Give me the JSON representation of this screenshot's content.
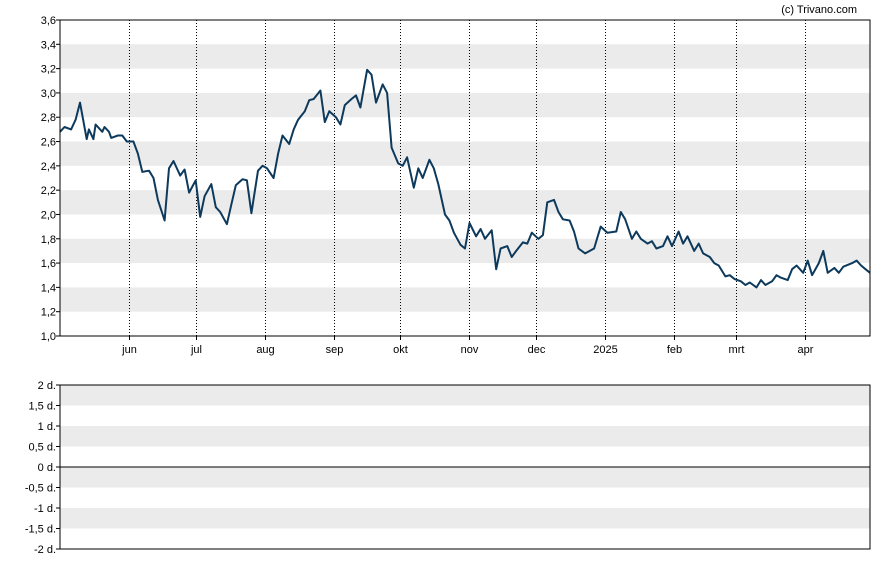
{
  "copyright": "(c) Trivano.com",
  "chart_data": [
    {
      "type": "line",
      "ylim": [
        1.0,
        3.6
      ],
      "y_ticks": [
        "1,0",
        "1,2",
        "1,4",
        "1,6",
        "1,8",
        "2,0",
        "2,2",
        "2,4",
        "2,6",
        "2,8",
        "3,0",
        "3,2",
        "3,4",
        "3,6"
      ],
      "x_ticks": [
        "jun",
        "jul",
        "aug",
        "sep",
        "okt",
        "nov",
        "dec",
        "2025",
        "feb",
        "mrt",
        "apr"
      ],
      "x_range": [
        "2024-05-01",
        "2025-04-30"
      ],
      "grid": "alternating horizontal bands, dotted vertical month lines",
      "colors": {
        "line": "#0d3a5c",
        "band": "#ebebeb"
      },
      "series": [
        {
          "x": [
            "2024-05-01",
            "2024-05-03",
            "2024-05-06",
            "2024-05-08",
            "2024-05-10",
            "2024-05-13",
            "2024-05-14",
            "2024-05-16",
            "2024-05-17",
            "2024-05-20",
            "2024-05-21",
            "2024-05-23",
            "2024-05-24",
            "2024-05-27",
            "2024-05-29",
            "2024-05-31",
            "2024-06-03",
            "2024-06-05",
            "2024-06-07",
            "2024-06-10",
            "2024-06-12",
            "2024-06-14",
            "2024-06-17",
            "2024-06-19",
            "2024-06-21",
            "2024-06-24",
            "2024-06-26",
            "2024-06-28",
            "2024-07-01",
            "2024-07-03",
            "2024-07-05",
            "2024-07-08",
            "2024-07-10",
            "2024-07-12",
            "2024-07-15",
            "2024-07-17",
            "2024-07-19",
            "2024-07-22",
            "2024-07-24",
            "2024-07-26",
            "2024-07-29",
            "2024-07-31",
            "2024-08-02",
            "2024-08-05",
            "2024-08-07",
            "2024-08-09",
            "2024-08-12",
            "2024-08-14",
            "2024-08-16",
            "2024-08-19",
            "2024-08-21",
            "2024-08-23",
            "2024-08-26",
            "2024-08-28",
            "2024-08-30",
            "2024-09-02",
            "2024-09-04",
            "2024-09-06",
            "2024-09-09",
            "2024-09-11",
            "2024-09-13",
            "2024-09-16",
            "2024-09-18",
            "2024-09-20",
            "2024-09-23",
            "2024-09-25",
            "2024-09-27",
            "2024-09-30",
            "2024-10-02",
            "2024-10-04",
            "2024-10-07",
            "2024-10-09",
            "2024-10-11",
            "2024-10-14",
            "2024-10-16",
            "2024-10-18",
            "2024-10-21",
            "2024-10-23",
            "2024-10-25",
            "2024-10-28",
            "2024-10-30",
            "2024-11-01",
            "2024-11-04",
            "2024-11-06",
            "2024-11-08",
            "2024-11-11",
            "2024-11-13",
            "2024-11-15",
            "2024-11-18",
            "2024-11-20",
            "2024-11-22",
            "2024-11-25",
            "2024-11-27",
            "2024-11-29",
            "2024-12-02",
            "2024-12-04",
            "2024-12-06",
            "2024-12-09",
            "2024-12-11",
            "2024-12-13",
            "2024-12-16",
            "2024-12-18",
            "2024-12-20",
            "2024-12-23",
            "2024-12-27",
            "2024-12-30",
            "2025-01-02",
            "2025-01-06",
            "2025-01-08",
            "2025-01-10",
            "2025-01-13",
            "2025-01-15",
            "2025-01-17",
            "2025-01-20",
            "2025-01-22",
            "2025-01-24",
            "2025-01-27",
            "2025-01-29",
            "2025-01-31",
            "2025-02-03",
            "2025-02-05",
            "2025-02-07",
            "2025-02-10",
            "2025-02-12",
            "2025-02-14",
            "2025-02-17",
            "2025-02-19",
            "2025-02-21",
            "2025-02-24",
            "2025-02-26",
            "2025-02-28",
            "2025-03-03",
            "2025-03-05",
            "2025-03-07",
            "2025-03-10",
            "2025-03-12",
            "2025-03-14",
            "2025-03-17",
            "2025-03-19",
            "2025-03-21",
            "2025-03-24",
            "2025-03-26",
            "2025-03-28",
            "2025-03-31",
            "2025-04-02",
            "2025-04-04",
            "2025-04-07",
            "2025-04-09",
            "2025-04-11",
            "2025-04-14",
            "2025-04-16",
            "2025-04-18",
            "2025-04-22",
            "2025-04-24",
            "2025-04-26",
            "2025-04-28",
            "2025-04-30"
          ],
          "values": [
            2.68,
            2.72,
            2.7,
            2.78,
            2.92,
            2.62,
            2.7,
            2.62,
            2.74,
            2.68,
            2.72,
            2.68,
            2.63,
            2.65,
            2.65,
            2.6,
            2.6,
            2.5,
            2.35,
            2.36,
            2.3,
            2.12,
            1.95,
            2.38,
            2.44,
            2.32,
            2.37,
            2.18,
            2.28,
            1.98,
            2.15,
            2.25,
            2.06,
            2.02,
            1.92,
            2.08,
            2.24,
            2.29,
            2.28,
            2.01,
            2.36,
            2.4,
            2.38,
            2.3,
            2.5,
            2.65,
            2.58,
            2.7,
            2.78,
            2.85,
            2.94,
            2.95,
            3.02,
            2.76,
            2.85,
            2.8,
            2.74,
            2.9,
            2.95,
            2.98,
            2.88,
            3.19,
            3.15,
            2.92,
            3.07,
            3.0,
            2.55,
            2.42,
            2.4,
            2.47,
            2.22,
            2.38,
            2.3,
            2.45,
            2.38,
            2.25,
            2.0,
            1.95,
            1.85,
            1.75,
            1.72,
            1.93,
            1.82,
            1.88,
            1.8,
            1.87,
            1.55,
            1.72,
            1.74,
            1.65,
            1.7,
            1.77,
            1.76,
            1.85,
            1.8,
            1.83,
            2.1,
            2.12,
            2.02,
            1.96,
            1.95,
            1.86,
            1.72,
            1.68,
            1.72,
            1.9,
            1.85,
            1.86,
            2.02,
            1.96,
            1.8,
            1.86,
            1.8,
            1.76,
            1.78,
            1.72,
            1.74,
            1.82,
            1.74,
            1.86,
            1.76,
            1.82,
            1.7,
            1.76,
            1.68,
            1.65,
            1.6,
            1.58,
            1.49,
            1.5,
            1.47,
            1.45,
            1.42,
            1.44,
            1.4,
            1.46,
            1.42,
            1.45,
            1.5,
            1.48,
            1.46,
            1.55,
            1.58,
            1.52,
            1.62,
            1.5,
            1.6,
            1.7,
            1.52,
            1.56,
            1.52,
            1.57,
            1.6,
            1.62,
            1.58,
            1.55,
            1.52
          ]
        }
      ]
    },
    {
      "type": "bar",
      "ylim": [
        -2,
        2
      ],
      "y_ticks": [
        "2 d.",
        "1,5 d.",
        "1 d.",
        "0,5 d.",
        "0 d.",
        "-0,5 d.",
        "-1 d.",
        "-1,5 d.",
        "-2 d."
      ],
      "series": []
    }
  ]
}
